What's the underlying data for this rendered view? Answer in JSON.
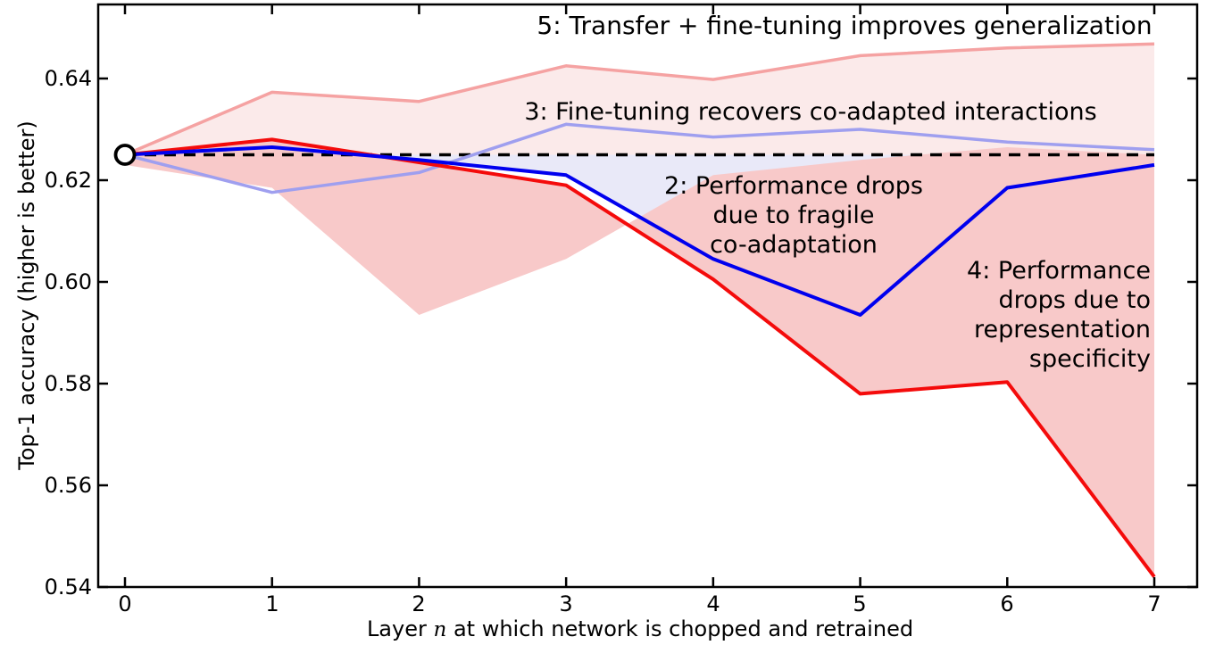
{
  "chart_data": {
    "type": "line",
    "title": "",
    "xlabel_parts": {
      "pre": "Layer ",
      "var": "n",
      "post": " at which network is chopped and retrained"
    },
    "ylabel": "Top-1 accuracy (higher is better)",
    "x": [
      0,
      1,
      2,
      3,
      4,
      5,
      6,
      7
    ],
    "xtick_labels": [
      "0",
      "1",
      "2",
      "3",
      "4",
      "5",
      "6",
      "7"
    ],
    "ytick_values": [
      0.54,
      0.56,
      0.58,
      0.6,
      0.62,
      0.64
    ],
    "ytick_labels": [
      "0.54",
      "0.56",
      "0.58",
      "0.60",
      "0.62",
      "0.64"
    ],
    "xlim": [
      -0.18,
      7.29
    ],
    "ylim": [
      0.54,
      0.6546
    ],
    "grid": false,
    "legend_position": "none (inline text annotations)",
    "baseline": {
      "value": 0.625,
      "line_style": "dashed",
      "color": "#000000",
      "marker": {
        "shape": "open-circle",
        "x": 0,
        "y": 0.625,
        "fill": "#ffffff",
        "stroke": "#000000"
      }
    },
    "series": [
      {
        "id": "5",
        "annotation_lines": [
          "5: Transfer + fine-tuning improves generalization"
        ],
        "color": "#f5a2a2",
        "fill_to": "baseline",
        "fill_color": "#fbeaea",
        "values": [
          0.625,
          0.6373,
          0.6355,
          0.6425,
          0.6398,
          0.6445,
          0.646,
          0.6468
        ]
      },
      {
        "id": "3",
        "annotation_lines": [
          "3: Fine-tuning recovers co-adapted interactions"
        ],
        "color": "#9f9fef",
        "fill_to": "none",
        "fill_color": "",
        "values": [
          0.625,
          0.6176,
          0.6215,
          0.631,
          0.6285,
          0.63,
          0.6275,
          0.626
        ]
      },
      {
        "id": "2",
        "annotation_lines": [
          "2: Performance drops",
          "due to fragile",
          "co-adaptation"
        ],
        "color": "#0000ee",
        "fill_to": "baseline",
        "fill_color": "#e9e9f8",
        "values": [
          0.625,
          0.6265,
          0.624,
          0.621,
          0.6045,
          0.5935,
          0.6185,
          0.623
        ]
      },
      {
        "id": "4",
        "annotation_lines": [
          "4: Performance",
          "drops due to",
          "representation",
          "specificity"
        ],
        "color": "#f40b0b",
        "fill_to": "series-2",
        "fill_color": "#f8c9c9",
        "values": [
          0.625,
          0.628,
          0.6235,
          0.619,
          0.6005,
          0.578,
          0.5803,
          0.542
        ]
      }
    ]
  }
}
